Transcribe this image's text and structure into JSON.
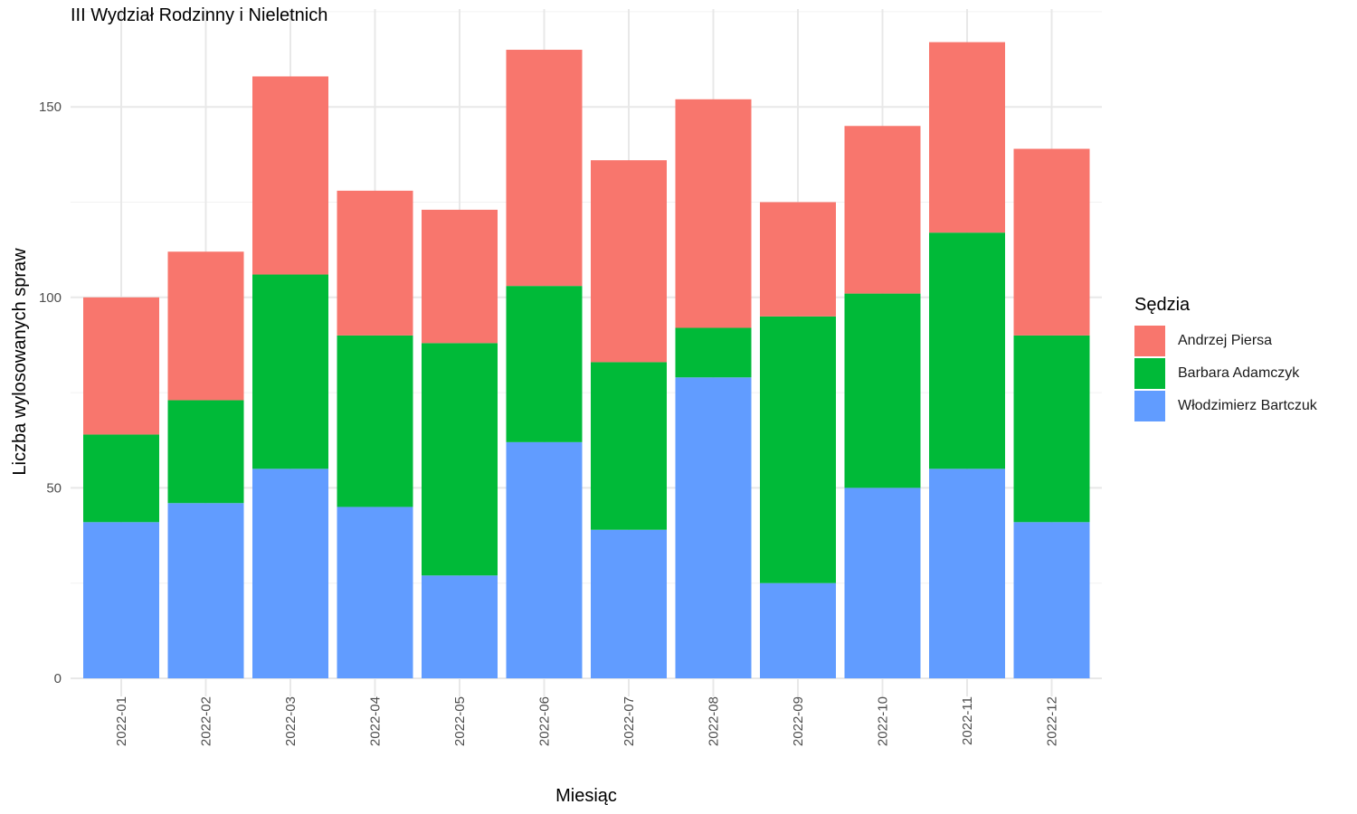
{
  "chart_data": {
    "type": "bar",
    "stacked": true,
    "title": "III Wydział Rodzinny i Nieletnich",
    "xlabel": "Miesiąc",
    "ylabel": "Liczba wylosowanych spraw",
    "ylim": [
      0,
      175
    ],
    "yticks": [
      0,
      50,
      100,
      150
    ],
    "categories": [
      "2022-01",
      "2022-02",
      "2022-03",
      "2022-04",
      "2022-05",
      "2022-06",
      "2022-07",
      "2022-08",
      "2022-09",
      "2022-10",
      "2022-11",
      "2022-12"
    ],
    "legend_title": "Sędzia",
    "legend_position": "right",
    "grid": true,
    "series": [
      {
        "name": "Włodzimierz Bartczuk",
        "color": "#619CFF",
        "values": [
          41,
          46,
          55,
          45,
          27,
          62,
          39,
          79,
          25,
          50,
          55,
          41
        ]
      },
      {
        "name": "Barbara Adamczyk",
        "color": "#00BA38",
        "values": [
          23,
          27,
          51,
          45,
          61,
          41,
          44,
          13,
          70,
          51,
          62,
          49
        ]
      },
      {
        "name": "Andrzej Piersa",
        "color": "#F8766D",
        "values": [
          36,
          39,
          52,
          38,
          35,
          62,
          53,
          60,
          30,
          44,
          50,
          49
        ]
      }
    ],
    "legend_order": [
      "Andrzej Piersa",
      "Barbara Adamczyk",
      "Włodzimierz Bartczuk"
    ]
  }
}
